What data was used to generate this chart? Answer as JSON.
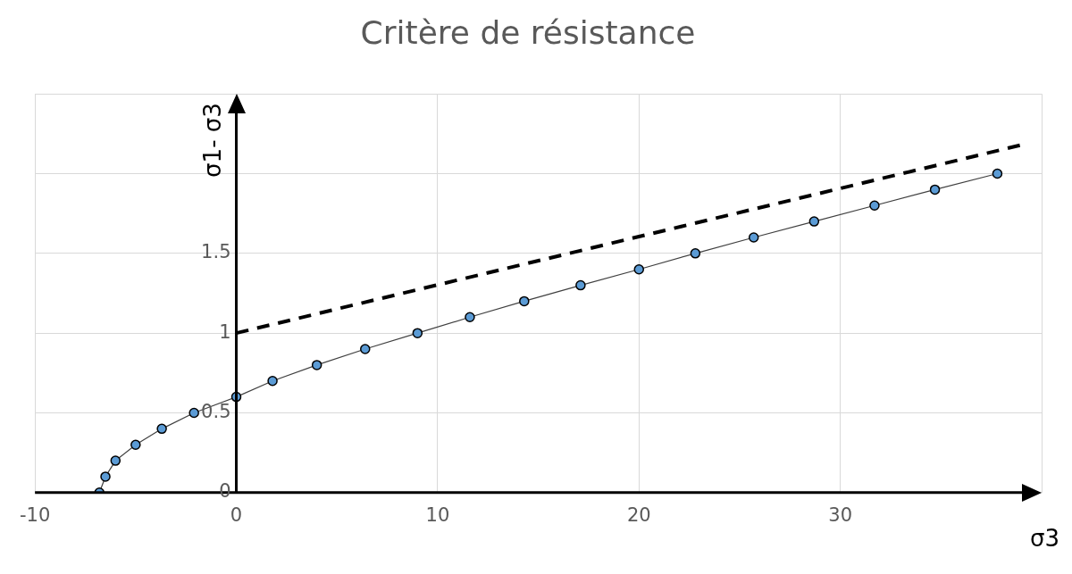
{
  "chart_data": {
    "type": "line",
    "title": "Critère de résistance",
    "xlabel": "σ3",
    "ylabel": "σ1- σ3",
    "xlim": [
      -10,
      40
    ],
    "xticks": [
      -10,
      0,
      10,
      20,
      30,
      {
        "value": 40,
        "label": null
      }
    ],
    "ylim": [
      0,
      2.5
    ],
    "yticks": [
      0,
      0.5,
      1,
      1.5,
      {
        "value": 2,
        "label": null
      },
      {
        "value": 2.5,
        "label": null
      }
    ],
    "grid": true,
    "legend": false,
    "series": [
      {
        "type": "line",
        "color": "#5b9bd5",
        "marker": "circle",
        "line_style": "solid",
        "x": [
          -6.8,
          -6.5,
          -6,
          -5,
          -3.7,
          -2.1,
          0,
          1.8,
          4,
          6.4,
          9,
          11.6,
          14.3,
          17.1,
          20,
          22.8,
          25.7,
          28.7,
          31.7,
          34.7,
          37.8
        ],
        "values": [
          0,
          0.1,
          0.2,
          0.3,
          0.4,
          0.5,
          0.6,
          0.7,
          0.8,
          0.9,
          1,
          1.1,
          1.2,
          1.3,
          1.4,
          1.5,
          1.6,
          1.7,
          1.8,
          1.9,
          2
        ]
      },
      {
        "type": "line",
        "color": "#000000",
        "marker": "none",
        "line_style": "dashed",
        "x": [
          0,
          39
        ],
        "values": [
          1,
          2.18
        ]
      }
    ]
  }
}
